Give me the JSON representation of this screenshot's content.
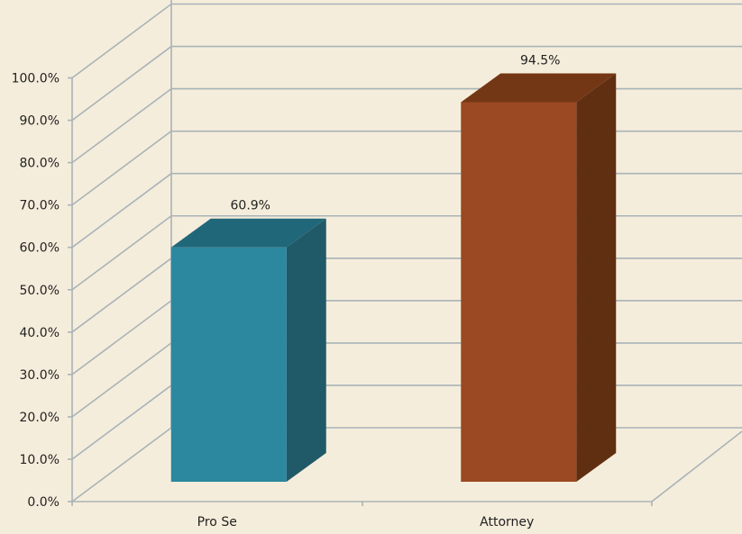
{
  "chart_data": {
    "type": "bar",
    "categories": [
      "Pro Se",
      "Attorney"
    ],
    "values": [
      60.9,
      94.5
    ],
    "value_labels": [
      "60.9%",
      "94.5%"
    ],
    "y_tick_labels": [
      "0.0%",
      "10.0%",
      "20.0%",
      "30.0%",
      "40.0%",
      "50.0%",
      "60.0%",
      "70.0%",
      "80.0%",
      "90.0%",
      "100.0%"
    ],
    "ylim": [
      0,
      100
    ],
    "grid": true,
    "style_3d": true,
    "bar_colors": [
      {
        "front": "#2b889f",
        "side": "#205a68",
        "top": "#21677a"
      },
      {
        "front": "#9a4922",
        "side": "#602e10",
        "top": "#743716"
      }
    ],
    "background": "#f5eddb",
    "grid_color": "#a9b3b8"
  }
}
